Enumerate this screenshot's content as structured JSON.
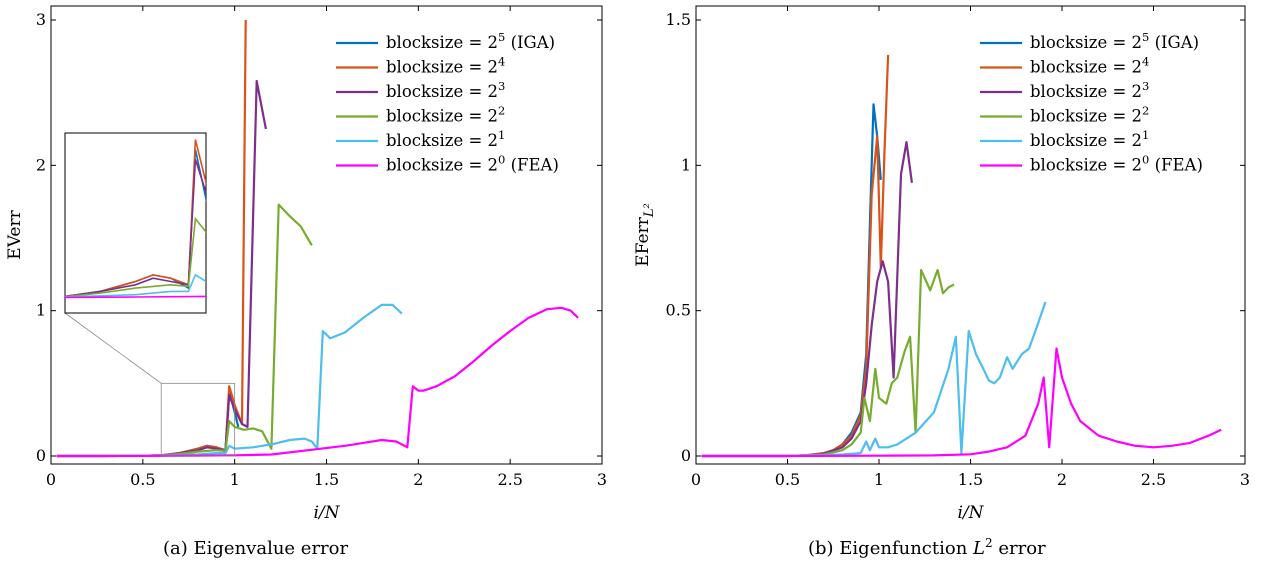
{
  "panels": [
    {
      "id": "a",
      "caption": "(a) Eigenvalue error",
      "ylabel": "EVerr",
      "xlabel": "i/N"
    },
    {
      "id": "b",
      "caption": "(b) Eigenfunction L² error",
      "ylabel": "EFerr_{L²}",
      "xlabel": "i/N"
    }
  ],
  "legend_entries": [
    {
      "prefix": "blocksize = 2",
      "exp": "5",
      "suffix": " (IGA)",
      "color": "#0072BD"
    },
    {
      "prefix": "blocksize = 2",
      "exp": "4",
      "suffix": "",
      "color": "#D95319"
    },
    {
      "prefix": "blocksize = 2",
      "exp": "3",
      "suffix": "",
      "color": "#7E2F8E"
    },
    {
      "prefix": "blocksize = 2",
      "exp": "2",
      "suffix": "",
      "color": "#77AC30"
    },
    {
      "prefix": "blocksize = 2",
      "exp": "1",
      "suffix": "",
      "color": "#4DBEEE"
    },
    {
      "prefix": "blocksize = 2",
      "exp": "0",
      "suffix": " (FEA)",
      "color": "#FF00FF"
    }
  ],
  "chart_data": [
    {
      "type": "line",
      "title": "(a) Eigenvalue error",
      "xlabel": "i/N",
      "ylabel": "EVerr",
      "xlim": [
        0,
        3
      ],
      "ylim": [
        0,
        3
      ],
      "xticks": [
        0,
        0.5,
        1,
        1.5,
        2,
        2.5,
        3
      ],
      "yticks": [
        0,
        1,
        2,
        3
      ],
      "xtick_labels": [
        "0",
        "0.5",
        "1",
        "1.5",
        "2",
        "2.5",
        "3"
      ],
      "ytick_labels": [
        "0",
        "1",
        "2",
        "3"
      ],
      "legend_position": "top-right",
      "inset": {
        "x_range": [
          0.6,
          1.0
        ],
        "y_range": [
          0.0,
          0.5
        ],
        "position": "left"
      },
      "series": [
        {
          "name": "blocksize = 2^5 (IGA)",
          "color": "#0072BD",
          "points": [
            [
              0.03,
              0
            ],
            [
              0.3,
              0
            ],
            [
              0.5,
              0.002
            ],
            [
              0.6,
              0.005
            ],
            [
              0.7,
              0.02
            ],
            [
              0.8,
              0.05
            ],
            [
              0.85,
              0.07
            ],
            [
              0.9,
              0.06
            ],
            [
              0.95,
              0.03
            ],
            [
              0.97,
              0.45
            ],
            [
              1.0,
              0.3
            ],
            [
              1.02,
              0.2
            ]
          ]
        },
        {
          "name": "blocksize = 2^4",
          "color": "#D95319",
          "points": [
            [
              0.03,
              0
            ],
            [
              0.3,
              0
            ],
            [
              0.5,
              0.002
            ],
            [
              0.6,
              0.005
            ],
            [
              0.7,
              0.02
            ],
            [
              0.8,
              0.05
            ],
            [
              0.85,
              0.07
            ],
            [
              0.9,
              0.06
            ],
            [
              0.95,
              0.04
            ],
            [
              0.97,
              0.48
            ],
            [
              1.0,
              0.35
            ],
            [
              1.04,
              0.22
            ],
            [
              1.06,
              3.0
            ]
          ]
        },
        {
          "name": "blocksize = 2^3",
          "color": "#7E2F8E",
          "points": [
            [
              0.03,
              0
            ],
            [
              0.3,
              0
            ],
            [
              0.5,
              0.002
            ],
            [
              0.6,
              0.005
            ],
            [
              0.7,
              0.02
            ],
            [
              0.8,
              0.04
            ],
            [
              0.85,
              0.06
            ],
            [
              0.9,
              0.05
            ],
            [
              0.95,
              0.04
            ],
            [
              0.97,
              0.42
            ],
            [
              1.0,
              0.32
            ],
            [
              1.04,
              0.22
            ],
            [
              1.07,
              0.2
            ],
            [
              1.12,
              2.58
            ],
            [
              1.17,
              2.25
            ]
          ]
        },
        {
          "name": "blocksize = 2^2",
          "color": "#77AC30",
          "points": [
            [
              0.03,
              0
            ],
            [
              0.3,
              0
            ],
            [
              0.5,
              0.002
            ],
            [
              0.6,
              0.004
            ],
            [
              0.7,
              0.015
            ],
            [
              0.8,
              0.03
            ],
            [
              0.9,
              0.04
            ],
            [
              0.95,
              0.035
            ],
            [
              0.97,
              0.24
            ],
            [
              1.0,
              0.2
            ],
            [
              1.05,
              0.18
            ],
            [
              1.1,
              0.19
            ],
            [
              1.15,
              0.17
            ],
            [
              1.2,
              0.05
            ],
            [
              1.24,
              1.73
            ],
            [
              1.3,
              1.65
            ],
            [
              1.36,
              1.58
            ],
            [
              1.42,
              1.45
            ]
          ]
        },
        {
          "name": "blocksize = 2^1",
          "color": "#4DBEEE",
          "points": [
            [
              0.03,
              0
            ],
            [
              0.3,
              0
            ],
            [
              0.6,
              0.003
            ],
            [
              0.8,
              0.01
            ],
            [
              0.9,
              0.02
            ],
            [
              0.95,
              0.02
            ],
            [
              0.97,
              0.07
            ],
            [
              1.0,
              0.05
            ],
            [
              1.1,
              0.06
            ],
            [
              1.2,
              0.08
            ],
            [
              1.3,
              0.11
            ],
            [
              1.38,
              0.12
            ],
            [
              1.42,
              0.1
            ],
            [
              1.45,
              0.05
            ],
            [
              1.48,
              0.86
            ],
            [
              1.52,
              0.81
            ],
            [
              1.6,
              0.85
            ],
            [
              1.7,
              0.95
            ],
            [
              1.8,
              1.04
            ],
            [
              1.86,
              1.04
            ],
            [
              1.91,
              0.98
            ]
          ]
        },
        {
          "name": "blocksize = 2^0 (FEA)",
          "color": "#FF00FF",
          "points": [
            [
              0.03,
              0
            ],
            [
              0.5,
              0.001
            ],
            [
              0.8,
              0.003
            ],
            [
              1.0,
              0.005
            ],
            [
              1.2,
              0.01
            ],
            [
              1.4,
              0.04
            ],
            [
              1.6,
              0.07
            ],
            [
              1.7,
              0.09
            ],
            [
              1.8,
              0.11
            ],
            [
              1.88,
              0.1
            ],
            [
              1.94,
              0.06
            ],
            [
              1.97,
              0.48
            ],
            [
              2.0,
              0.45
            ],
            [
              2.03,
              0.45
            ],
            [
              2.1,
              0.48
            ],
            [
              2.2,
              0.55
            ],
            [
              2.3,
              0.65
            ],
            [
              2.4,
              0.76
            ],
            [
              2.5,
              0.86
            ],
            [
              2.6,
              0.95
            ],
            [
              2.7,
              1.01
            ],
            [
              2.78,
              1.02
            ],
            [
              2.83,
              1.0
            ],
            [
              2.87,
              0.95
            ]
          ]
        }
      ]
    },
    {
      "type": "line",
      "title": "(b) Eigenfunction L² error",
      "xlabel": "i/N",
      "ylabel": "EFerr_{L²}",
      "xlim": [
        0,
        3
      ],
      "ylim": [
        0,
        1.5
      ],
      "xticks": [
        0,
        0.5,
        1,
        1.5,
        2,
        2.5,
        3
      ],
      "yticks": [
        0,
        0.5,
        1,
        1.5
      ],
      "xtick_labels": [
        "0",
        "0.5",
        "1",
        "1.5",
        "2",
        "2.5",
        "3"
      ],
      "ytick_labels": [
        "0",
        "0.5",
        "1",
        "1.5"
      ],
      "legend_position": "top-right",
      "series": [
        {
          "name": "blocksize = 2^5 (IGA)",
          "color": "#0072BD",
          "points": [
            [
              0.03,
              0
            ],
            [
              0.5,
              0
            ],
            [
              0.6,
              0.002
            ],
            [
              0.7,
              0.01
            ],
            [
              0.75,
              0.02
            ],
            [
              0.8,
              0.04
            ],
            [
              0.85,
              0.08
            ],
            [
              0.9,
              0.15
            ],
            [
              0.93,
              0.35
            ],
            [
              0.95,
              0.8
            ],
            [
              0.97,
              1.21
            ],
            [
              0.99,
              1.1
            ],
            [
              1.01,
              0.95
            ]
          ]
        },
        {
          "name": "blocksize = 2^4",
          "color": "#D95319",
          "points": [
            [
              0.03,
              0
            ],
            [
              0.5,
              0
            ],
            [
              0.6,
              0.002
            ],
            [
              0.7,
              0.01
            ],
            [
              0.75,
              0.02
            ],
            [
              0.8,
              0.04
            ],
            [
              0.85,
              0.07
            ],
            [
              0.9,
              0.14
            ],
            [
              0.93,
              0.3
            ],
            [
              0.96,
              0.9
            ],
            [
              0.99,
              1.1
            ],
            [
              1.01,
              0.65
            ],
            [
              1.03,
              1.05
            ],
            [
              1.05,
              1.38
            ]
          ]
        },
        {
          "name": "blocksize = 2^3",
          "color": "#7E2F8E",
          "points": [
            [
              0.03,
              0
            ],
            [
              0.5,
              0
            ],
            [
              0.6,
              0.002
            ],
            [
              0.7,
              0.008
            ],
            [
              0.8,
              0.03
            ],
            [
              0.85,
              0.06
            ],
            [
              0.9,
              0.12
            ],
            [
              0.93,
              0.25
            ],
            [
              0.96,
              0.45
            ],
            [
              0.99,
              0.6
            ],
            [
              1.02,
              0.67
            ],
            [
              1.05,
              0.6
            ],
            [
              1.08,
              0.27
            ],
            [
              1.12,
              0.97
            ],
            [
              1.15,
              1.08
            ],
            [
              1.18,
              0.94
            ]
          ]
        },
        {
          "name": "blocksize = 2^2",
          "color": "#77AC30",
          "points": [
            [
              0.03,
              0
            ],
            [
              0.5,
              0
            ],
            [
              0.7,
              0.005
            ],
            [
              0.8,
              0.02
            ],
            [
              0.85,
              0.04
            ],
            [
              0.9,
              0.08
            ],
            [
              0.92,
              0.2
            ],
            [
              0.95,
              0.12
            ],
            [
              0.98,
              0.3
            ],
            [
              1.0,
              0.2
            ],
            [
              1.04,
              0.18
            ],
            [
              1.07,
              0.25
            ],
            [
              1.1,
              0.27
            ],
            [
              1.14,
              0.36
            ],
            [
              1.17,
              0.41
            ],
            [
              1.2,
              0.08
            ],
            [
              1.23,
              0.64
            ],
            [
              1.28,
              0.57
            ],
            [
              1.32,
              0.64
            ],
            [
              1.35,
              0.56
            ],
            [
              1.38,
              0.58
            ],
            [
              1.41,
              0.59
            ]
          ]
        },
        {
          "name": "blocksize = 2^1",
          "color": "#4DBEEE",
          "points": [
            [
              0.03,
              0
            ],
            [
              0.5,
              0
            ],
            [
              0.7,
              0.003
            ],
            [
              0.8,
              0.005
            ],
            [
              0.9,
              0.01
            ],
            [
              0.93,
              0.05
            ],
            [
              0.95,
              0.02
            ],
            [
              0.98,
              0.06
            ],
            [
              1.0,
              0.03
            ],
            [
              1.05,
              0.03
            ],
            [
              1.1,
              0.04
            ],
            [
              1.2,
              0.08
            ],
            [
              1.3,
              0.15
            ],
            [
              1.38,
              0.3
            ],
            [
              1.42,
              0.41
            ],
            [
              1.45,
              0.01
            ],
            [
              1.49,
              0.43
            ],
            [
              1.53,
              0.35
            ],
            [
              1.57,
              0.3
            ],
            [
              1.6,
              0.26
            ],
            [
              1.63,
              0.25
            ],
            [
              1.66,
              0.27
            ],
            [
              1.7,
              0.34
            ],
            [
              1.73,
              0.3
            ],
            [
              1.78,
              0.35
            ],
            [
              1.82,
              0.37
            ],
            [
              1.86,
              0.44
            ],
            [
              1.91,
              0.53
            ]
          ]
        },
        {
          "name": "blocksize = 2^0 (FEA)",
          "color": "#FF00FF",
          "points": [
            [
              0.03,
              0
            ],
            [
              0.5,
              0
            ],
            [
              1.0,
              0.001
            ],
            [
              1.3,
              0.002
            ],
            [
              1.5,
              0.006
            ],
            [
              1.6,
              0.015
            ],
            [
              1.7,
              0.03
            ],
            [
              1.8,
              0.07
            ],
            [
              1.87,
              0.18
            ],
            [
              1.9,
              0.27
            ],
            [
              1.93,
              0.03
            ],
            [
              1.97,
              0.37
            ],
            [
              2.0,
              0.27
            ],
            [
              2.05,
              0.18
            ],
            [
              2.1,
              0.12
            ],
            [
              2.2,
              0.07
            ],
            [
              2.3,
              0.05
            ],
            [
              2.4,
              0.035
            ],
            [
              2.5,
              0.03
            ],
            [
              2.6,
              0.035
            ],
            [
              2.7,
              0.045
            ],
            [
              2.8,
              0.07
            ],
            [
              2.87,
              0.09
            ]
          ]
        }
      ]
    }
  ]
}
